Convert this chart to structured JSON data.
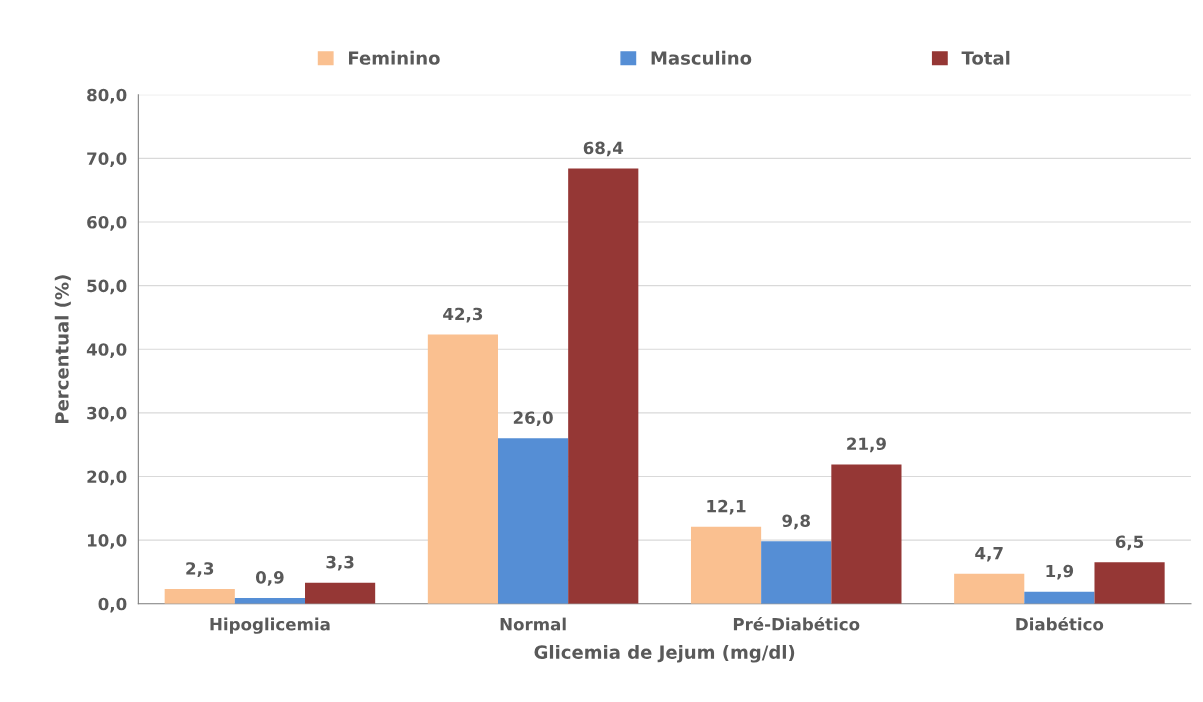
{
  "chart_data": {
    "type": "bar",
    "xlabel": "Glicemia de Jejum (mg/dl)",
    "ylabel": "Percentual (%)",
    "categories": [
      "Hipoglicemia",
      "Normal",
      "Pré-Diabético",
      "Diabético"
    ],
    "series": [
      {
        "name": "Feminino",
        "color": "#fac090",
        "values": [
          2.3,
          42.3,
          12.1,
          4.7
        ],
        "value_labels": [
          "2,3",
          "42,3",
          "12,1",
          "4,7"
        ]
      },
      {
        "name": "Masculino",
        "color": "#558ed5",
        "values": [
          0.9,
          26.0,
          9.8,
          1.9
        ],
        "value_labels": [
          "0,9",
          "26,0",
          "9,8",
          "1,9"
        ]
      },
      {
        "name": "Total",
        "color": "#953735",
        "values": [
          3.3,
          68.4,
          21.9,
          6.5
        ],
        "value_labels": [
          "3,3",
          "68,4",
          "21,9",
          "6,5"
        ]
      }
    ],
    "ylim": [
      0,
      80
    ],
    "yticks": [
      {
        "value": 0,
        "label": "0,0"
      },
      {
        "value": 10,
        "label": "10,0"
      },
      {
        "value": 20,
        "label": "20,0"
      },
      {
        "value": 30,
        "label": "30,0"
      },
      {
        "value": 40,
        "label": "40,0"
      },
      {
        "value": 50,
        "label": "50,0"
      },
      {
        "value": 60,
        "label": "60,0"
      },
      {
        "value": 70,
        "label": "70,0"
      },
      {
        "value": 80,
        "label": "80,0"
      }
    ],
    "grid": "y",
    "legend": "top"
  }
}
